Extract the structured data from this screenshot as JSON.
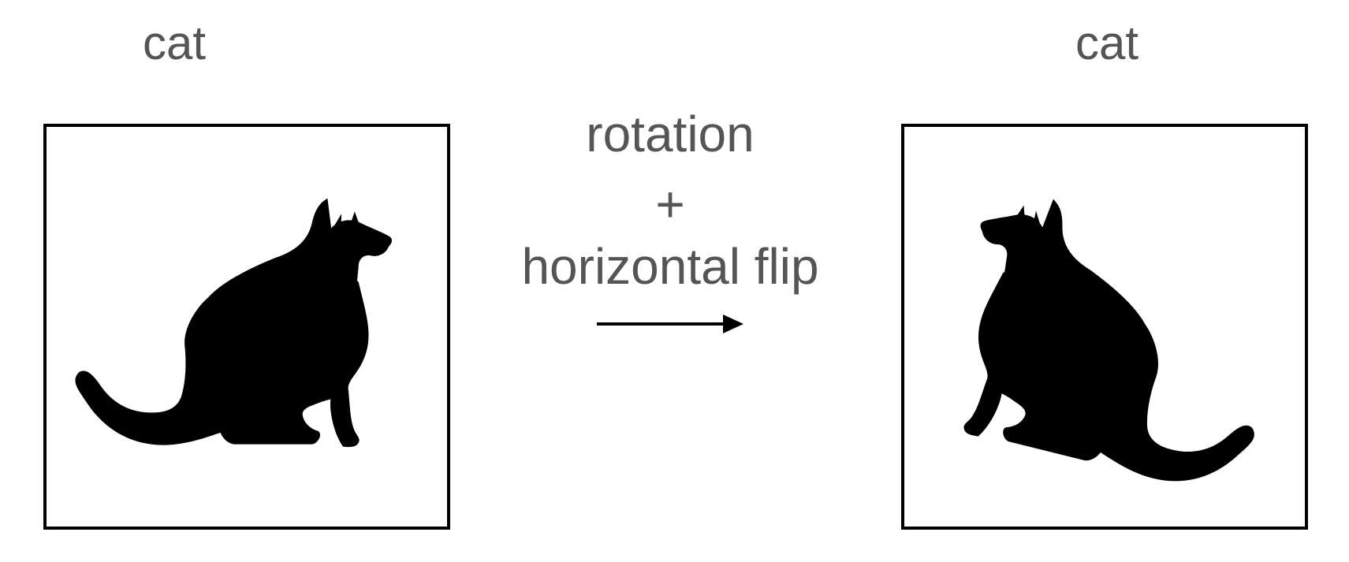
{
  "source": {
    "label": "cat",
    "icon": "cat-silhouette-sitting-facing-right"
  },
  "target": {
    "label": "cat",
    "icon": "cat-silhouette-rotated-flipped-facing-left"
  },
  "transform": {
    "line1": "rotation",
    "plus": "+",
    "line2": "horizontal flip",
    "arrow_icon": "right-arrow"
  },
  "colors": {
    "text": "#555555",
    "frame": "#000000",
    "silhouette": "#000000"
  }
}
